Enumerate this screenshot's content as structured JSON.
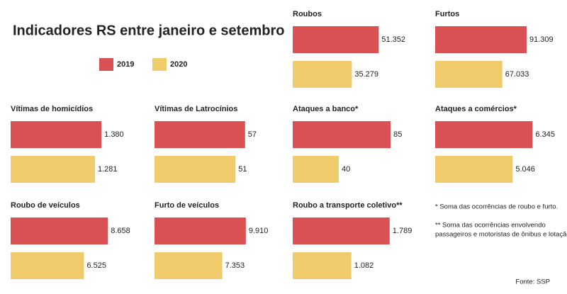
{
  "title": "Indicadores RS entre janeiro e setembro",
  "chart_data": [
    {
      "type": "bar",
      "title": "Roubos",
      "xlim": [
        0,
        55000
      ],
      "series": [
        {
          "name": "2019",
          "color": "#d95153",
          "values": [
            51352
          ],
          "value_labels": [
            "51.352"
          ]
        },
        {
          "name": "2020",
          "color": "#efcb6b",
          "values": [
            35279
          ],
          "value_labels": [
            "35.279"
          ]
        }
      ]
    },
    {
      "type": "bar",
      "title": "Furtos",
      "xlim": [
        0,
        92000
      ],
      "series": [
        {
          "name": "2019",
          "color": "#d95153",
          "values": [
            91309
          ],
          "value_labels": [
            "91.309"
          ]
        },
        {
          "name": "2020",
          "color": "#efcb6b",
          "values": [
            67033
          ],
          "value_labels": [
            "67.033"
          ]
        }
      ]
    },
    {
      "type": "bar",
      "title": "Vítimas de homicídios",
      "xlim": [
        0,
        1400
      ],
      "series": [
        {
          "name": "2019",
          "color": "#d95153",
          "values": [
            1380
          ],
          "value_labels": [
            "1.380"
          ]
        },
        {
          "name": "2020",
          "color": "#efcb6b",
          "values": [
            1281
          ],
          "value_labels": [
            "1.281"
          ]
        }
      ]
    },
    {
      "type": "bar",
      "title": "Vítimas de Latrocínios",
      "xlim": [
        0,
        58
      ],
      "series": [
        {
          "name": "2019",
          "color": "#d95153",
          "values": [
            57
          ]
        },
        {
          "name": "2020",
          "color": "#efcb6b",
          "values": [
            51
          ]
        }
      ]
    },
    {
      "type": "bar",
      "title": "Ataques a banco*",
      "xlim": [
        0,
        80
      ],
      "series": [
        {
          "name": "2019",
          "color": "#d95153",
          "values": [
            85
          ]
        },
        {
          "name": "2020",
          "color": "#efcb6b",
          "values": [
            40
          ]
        }
      ]
    },
    {
      "type": "bar",
      "title": "Ataques a comércios*",
      "xlim": [
        0,
        6000
      ],
      "series": [
        {
          "name": "2019",
          "color": "#d95153",
          "values": [
            6345
          ],
          "value_labels": [
            "6.345"
          ]
        },
        {
          "name": "2020",
          "color": "#efcb6b",
          "values": [
            5046
          ],
          "value_labels": [
            "5.046"
          ]
        }
      ]
    },
    {
      "type": "bar",
      "title": "Roubo de veículos",
      "xlim": [
        0,
        8200
      ],
      "series": [
        {
          "name": "2019",
          "color": "#d95153",
          "values": [
            8658
          ],
          "value_labels": [
            "8.658"
          ]
        },
        {
          "name": "2020",
          "color": "#efcb6b",
          "values": [
            6525
          ],
          "value_labels": [
            "6.525"
          ]
        }
      ]
    },
    {
      "type": "bar",
      "title": "Furto de veículos",
      "xlim": [
        0,
        10000
      ],
      "series": [
        {
          "name": "2019",
          "color": "#d95153",
          "values": [
            9910
          ],
          "value_labels": [
            "9.910"
          ]
        },
        {
          "name": "2020",
          "color": "#efcb6b",
          "values": [
            7353
          ],
          "value_labels": [
            "7.353"
          ]
        }
      ]
    },
    {
      "type": "bar",
      "title": "Roubo a transporte coletivo**",
      "xlim": [
        0,
        1700
      ],
      "series": [
        {
          "name": "2019",
          "color": "#d95153",
          "values": [
            1789
          ],
          "value_labels": [
            "1.789"
          ]
        },
        {
          "name": "2020",
          "color": "#efcb6b",
          "values": [
            1082
          ],
          "value_labels": [
            "1.082"
          ]
        }
      ]
    }
  ],
  "notes": [
    "* Soma das ocorrências de roubo e furto.",
    "** Soma das ocorrências envolvendo",
    "passageiros e motoristas de ônibus e lotação."
  ],
  "source": "Fonte: SSP"
}
